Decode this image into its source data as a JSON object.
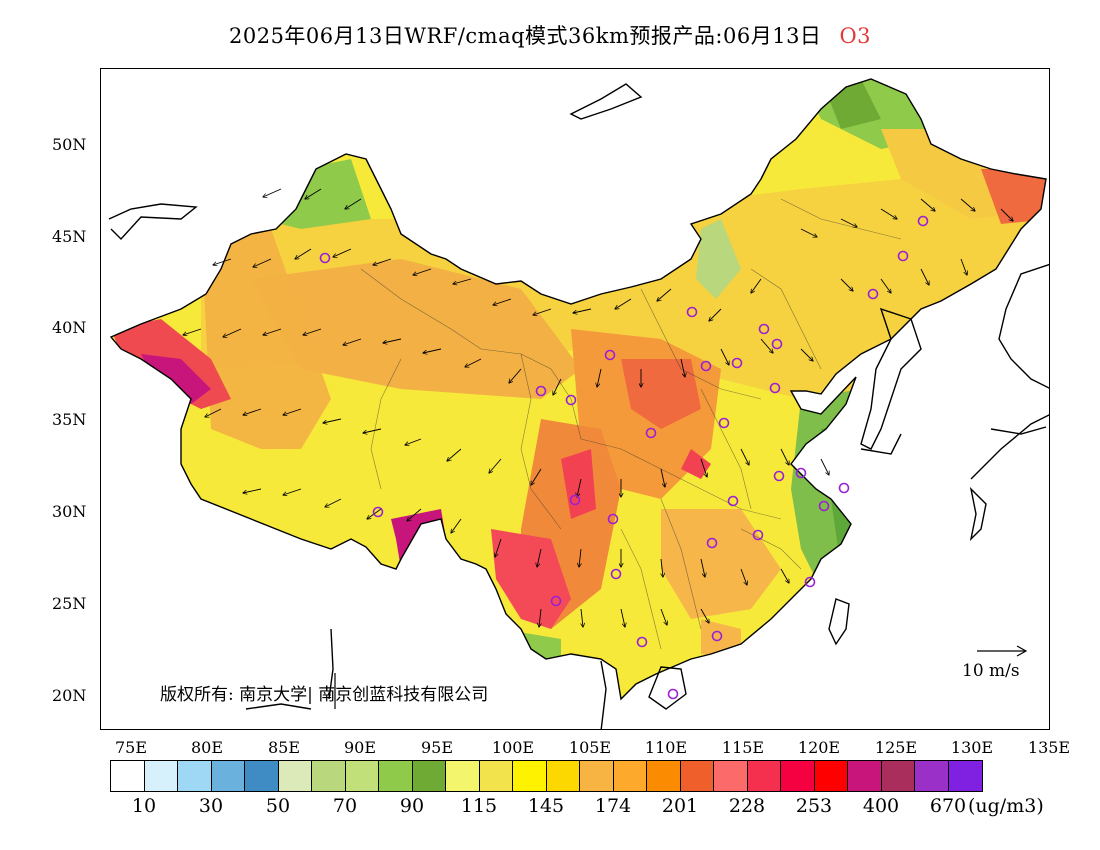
{
  "title": {
    "main": "2025年06月13日WRF/cmaq模式36km预报产品:06月13日",
    "species": "O3",
    "species_color": "#e23a3a"
  },
  "map": {
    "lat_labels": [
      "50N",
      "45N",
      "40N",
      "35N",
      "30N",
      "25N",
      "20N"
    ],
    "lon_labels": [
      "75E",
      "80E",
      "85E",
      "90E",
      "95E",
      "100E",
      "105E",
      "110E",
      "115E",
      "120E",
      "125E",
      "130E",
      "135E"
    ],
    "copyright": "版权所有: 南京大学| 南京创蓝科技有限公司",
    "wind_reference": "10 m/s",
    "stations_color": "#9b1fd6"
  },
  "colorbar": {
    "colors": [
      "#ffffff",
      "#d6f0fc",
      "#9fd8f4",
      "#6bb1de",
      "#3f8cc4",
      "#dbeab8",
      "#b9d77c",
      "#c1e07a",
      "#8fca4a",
      "#6faa34",
      "#f3f56c",
      "#f2e24c",
      "#fff200",
      "#fdd800",
      "#f7b442",
      "#fca92c",
      "#fb8b00",
      "#ef5f2c",
      "#fd6a6a",
      "#f5304e",
      "#f50040",
      "#ff0000",
      "#c8157c",
      "#a92e5c",
      "#9a30c8",
      "#8020e0"
    ],
    "tick_labels": [
      "10",
      "30",
      "50",
      "70",
      "90",
      "115",
      "145",
      "174",
      "201",
      "228",
      "253",
      "400",
      "670"
    ],
    "unit": "(ug/m3)"
  }
}
